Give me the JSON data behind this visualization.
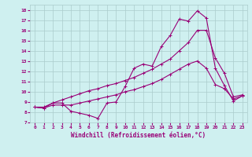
{
  "xlabel": "Windchill (Refroidissement éolien,°C)",
  "background_color": "#cff0f0",
  "grid_color": "#aacccc",
  "line_color": "#990077",
  "xlim": [
    -0.5,
    23.5
  ],
  "ylim": [
    7,
    18.5
  ],
  "xticks": [
    0,
    1,
    2,
    3,
    4,
    5,
    6,
    7,
    8,
    9,
    10,
    11,
    12,
    13,
    14,
    15,
    16,
    17,
    18,
    19,
    20,
    21,
    22,
    23
  ],
  "yticks": [
    7,
    8,
    9,
    10,
    11,
    12,
    13,
    14,
    15,
    16,
    17,
    18
  ],
  "line1_x": [
    0,
    1,
    2,
    3,
    4,
    5,
    6,
    7,
    8,
    9,
    10,
    11,
    12,
    13,
    14,
    15,
    16,
    17,
    18,
    19,
    20,
    21,
    22,
    23
  ],
  "line1_y": [
    8.5,
    8.4,
    8.9,
    8.9,
    8.1,
    7.9,
    7.7,
    7.4,
    8.9,
    9.0,
    10.5,
    12.3,
    12.7,
    12.5,
    14.4,
    15.5,
    17.1,
    16.9,
    17.9,
    17.2,
    12.3,
    10.6,
    9.1,
    9.6
  ],
  "line2_x": [
    0,
    1,
    2,
    3,
    4,
    5,
    6,
    7,
    8,
    9,
    10,
    11,
    12,
    13,
    14,
    15,
    16,
    17,
    18,
    19,
    20,
    21,
    22,
    23
  ],
  "line2_y": [
    8.5,
    8.4,
    8.7,
    8.7,
    8.7,
    8.9,
    9.1,
    9.3,
    9.5,
    9.7,
    10.0,
    10.2,
    10.5,
    10.8,
    11.2,
    11.7,
    12.2,
    12.7,
    13.0,
    12.3,
    10.7,
    10.3,
    9.3,
    9.6
  ],
  "line3_x": [
    0,
    1,
    2,
    3,
    4,
    5,
    6,
    7,
    8,
    9,
    10,
    11,
    12,
    13,
    14,
    15,
    16,
    17,
    18,
    19,
    20,
    21,
    22,
    23
  ],
  "line3_y": [
    8.5,
    8.5,
    8.9,
    9.2,
    9.5,
    9.8,
    10.1,
    10.3,
    10.6,
    10.8,
    11.1,
    11.4,
    11.8,
    12.2,
    12.7,
    13.2,
    14.0,
    14.8,
    16.0,
    16.0,
    13.3,
    11.8,
    9.5,
    9.7
  ]
}
